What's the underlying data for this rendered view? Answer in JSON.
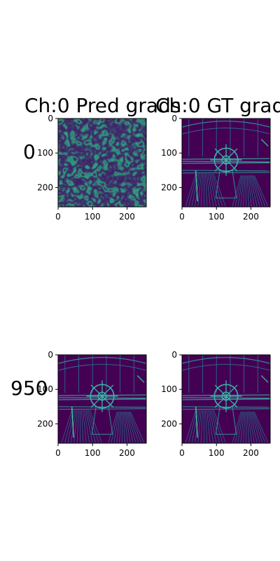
{
  "figure": {
    "row_labels": [
      "0",
      "950"
    ],
    "column_titles": [
      "Ch:0 Pred grads",
      "Ch:0 GT grads"
    ]
  },
  "chart_data": [
    {
      "type": "heatmap",
      "title": "Ch:0 Pred grads",
      "row_label": "0",
      "content": "noise",
      "xticks": [
        0,
        100,
        200
      ],
      "yticks": [
        0,
        100,
        200
      ],
      "xlim": [
        0,
        256
      ],
      "ylim": [
        256,
        0
      ],
      "colormap": "viridis"
    },
    {
      "type": "heatmap",
      "title": "Ch:0 GT grads",
      "row_label": "0",
      "content": "edges",
      "xticks": [
        0,
        100,
        200
      ],
      "yticks": [
        0,
        100,
        200
      ],
      "xlim": [
        0,
        256
      ],
      "ylim": [
        256,
        0
      ],
      "colormap": "viridis"
    },
    {
      "type": "heatmap",
      "title": "",
      "row_label": "950",
      "content": "edges",
      "xticks": [
        0,
        100,
        200
      ],
      "yticks": [
        0,
        100,
        200
      ],
      "xlim": [
        0,
        256
      ],
      "ylim": [
        256,
        0
      ],
      "colormap": "viridis"
    },
    {
      "type": "heatmap",
      "title": "",
      "row_label": "950",
      "content": "edges",
      "xticks": [
        0,
        100,
        200
      ],
      "yticks": [
        0,
        100,
        200
      ],
      "xlim": [
        0,
        256
      ],
      "ylim": [
        256,
        0
      ],
      "colormap": "viridis"
    }
  ]
}
